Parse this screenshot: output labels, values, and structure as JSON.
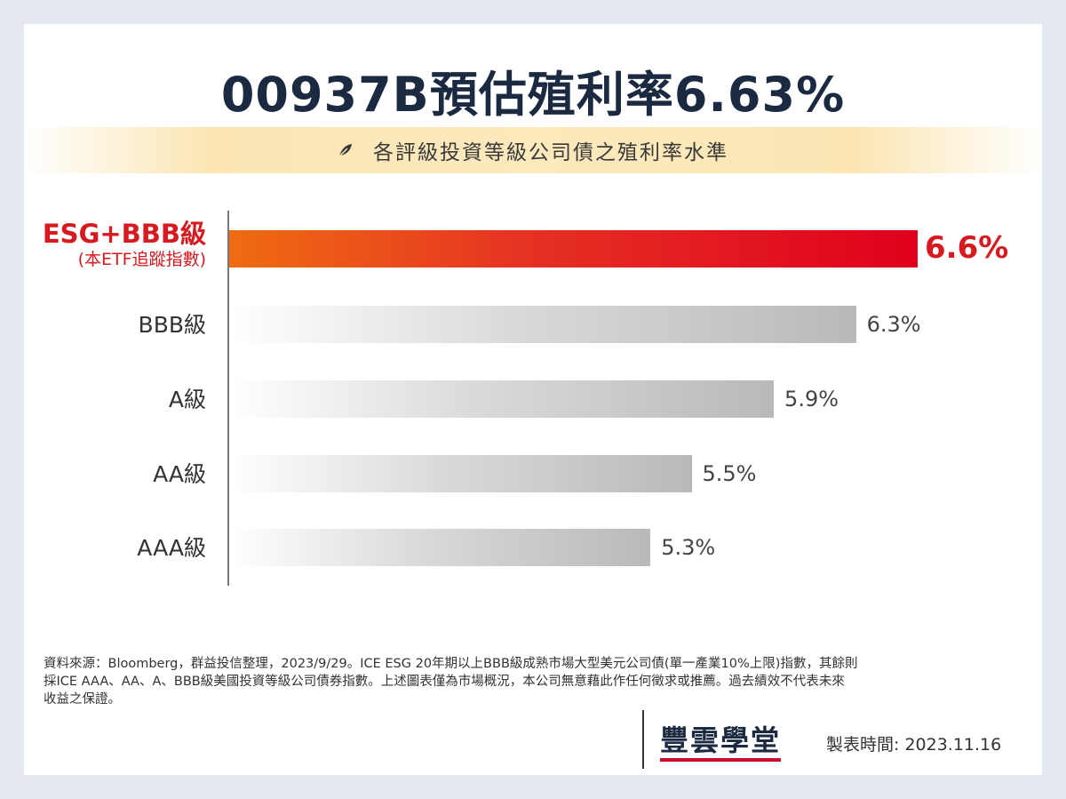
{
  "title": "00937B預估殖利率6.63%",
  "subtitle": "各評級投資等級公司債之殖利率水準",
  "chart_data": {
    "type": "bar",
    "orientation": "horizontal",
    "categories": [
      "ESG+BBB級",
      "BBB級",
      "A級",
      "AA級",
      "AAA級"
    ],
    "category_note": "(本ETF追蹤指數)",
    "values": [
      6.6,
      6.3,
      5.9,
      5.5,
      5.3
    ],
    "value_labels": [
      "6.6%",
      "6.3%",
      "5.9%",
      "5.5%",
      "5.3%"
    ],
    "highlight_index": 0,
    "highlight_color": "#e0001d",
    "bar_color": "#b9b9b9",
    "xlim": [
      3.25,
      6.6
    ]
  },
  "footnote": {
    "line1": "資料來源：Bloomberg，群益投信整理，2023/9/29。ICE ESG 20年期以上BBB級成熟市場大型美元公司債(單一產業10%上限)指數，其餘則",
    "line2": "採ICE AAA、AA、A、BBB級美國投資等級公司債券指數。上述圖表僅為市場概況，本公司無意藉此作任何徵求或推薦。過去績效不代表未來",
    "line3": "收益之保證。"
  },
  "brand": "豐雲學堂",
  "date_label": "製表時間:  2023.11.16"
}
